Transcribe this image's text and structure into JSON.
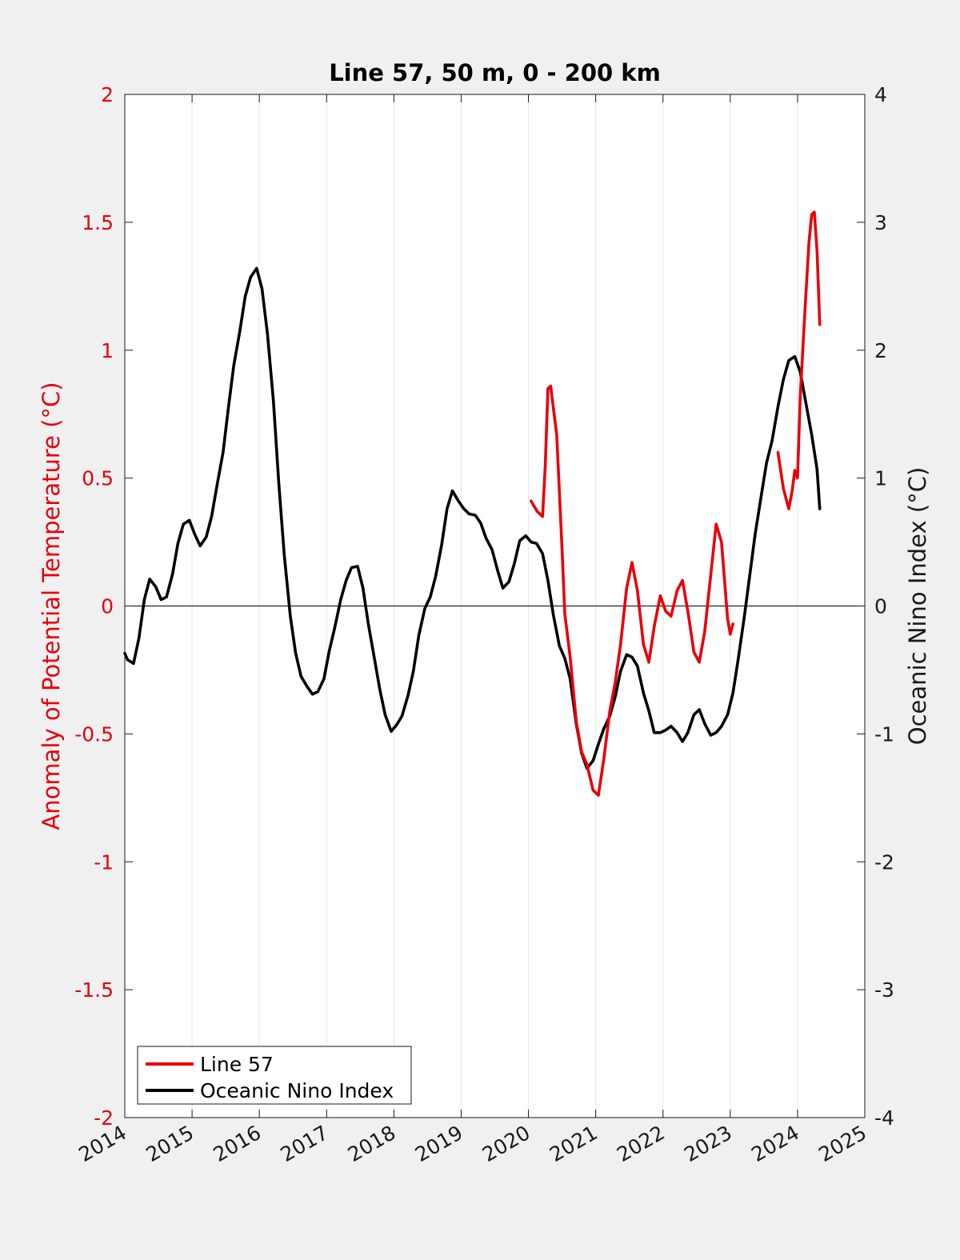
{
  "chart_data": {
    "type": "line",
    "title": "Line 57, 50 m, 0 - 200 km",
    "xlabel": "",
    "ylabel_left": "Anomaly of Potential Temperature (°C)",
    "ylabel_right": "Oceanic Nino Index (°C)",
    "xlim": [
      2014,
      2025
    ],
    "ylim_left": [
      -2,
      2
    ],
    "ylim_right": [
      -4,
      4
    ],
    "xticks": [
      "2014",
      "2015",
      "2016",
      "2017",
      "2018",
      "2019",
      "2020",
      "2021",
      "2022",
      "2023",
      "2024",
      "2025"
    ],
    "yticks_left": [
      "-2",
      "-1.5",
      "-1",
      "-0.5",
      "0",
      "0.5",
      "1",
      "1.5",
      "2"
    ],
    "yticks_right": [
      "-4",
      "-3",
      "-2",
      "-1",
      "0",
      "1",
      "2",
      "3",
      "4"
    ],
    "grid": "vertical",
    "legend_position": "bottom-left",
    "colors": {
      "line57": "#e8000b",
      "oni": "#000000"
    },
    "series": [
      {
        "name": "Line 57",
        "axis": "left",
        "color": "#e8000b",
        "segments": [
          [
            [
              2020.04,
              0.41
            ],
            [
              2020.13,
              0.37
            ],
            [
              2020.21,
              0.35
            ],
            [
              2020.25,
              0.55
            ],
            [
              2020.29,
              0.85
            ],
            [
              2020.33,
              0.86
            ],
            [
              2020.42,
              0.67
            ],
            [
              2020.5,
              0.22
            ],
            [
              2020.54,
              -0.03
            ],
            [
              2020.62,
              -0.2
            ],
            [
              2020.71,
              -0.45
            ],
            [
              2020.79,
              -0.57
            ],
            [
              2020.87,
              -0.62
            ],
            [
              2020.96,
              -0.72
            ],
            [
              2021.04,
              -0.74
            ],
            [
              2021.12,
              -0.6
            ],
            [
              2021.21,
              -0.41
            ],
            [
              2021.29,
              -0.3
            ],
            [
              2021.37,
              -0.15
            ],
            [
              2021.46,
              0.07
            ],
            [
              2021.54,
              0.17
            ],
            [
              2021.62,
              0.06
            ],
            [
              2021.71,
              -0.15
            ],
            [
              2021.79,
              -0.22
            ],
            [
              2021.87,
              -0.08
            ],
            [
              2021.96,
              0.04
            ],
            [
              2022.04,
              -0.02
            ],
            [
              2022.12,
              -0.04
            ],
            [
              2022.21,
              0.06
            ],
            [
              2022.29,
              0.1
            ],
            [
              2022.37,
              -0.02
            ],
            [
              2022.46,
              -0.18
            ],
            [
              2022.54,
              -0.22
            ],
            [
              2022.62,
              -0.1
            ],
            [
              2022.71,
              0.12
            ],
            [
              2022.79,
              0.32
            ],
            [
              2022.87,
              0.25
            ],
            [
              2022.96,
              -0.05
            ],
            [
              2023.0,
              -0.11
            ],
            [
              2023.04,
              -0.07
            ]
          ],
          [
            [
              2023.71,
              0.6
            ],
            [
              2023.79,
              0.46
            ],
            [
              2023.87,
              0.38
            ],
            [
              2023.92,
              0.45
            ],
            [
              2023.96,
              0.53
            ],
            [
              2024.0,
              0.5
            ],
            [
              2024.04,
              0.82
            ],
            [
              2024.12,
              1.2
            ],
            [
              2024.17,
              1.42
            ],
            [
              2024.21,
              1.53
            ],
            [
              2024.25,
              1.54
            ],
            [
              2024.29,
              1.39
            ],
            [
              2024.33,
              1.1
            ]
          ]
        ]
      },
      {
        "name": "Oceanic Nino Index",
        "axis": "right",
        "color": "#000000",
        "segments": [
          [
            [
              2014.0,
              -0.37
            ],
            [
              2014.04,
              -0.42
            ],
            [
              2014.13,
              -0.45
            ],
            [
              2014.21,
              -0.25
            ],
            [
              2014.29,
              0.05
            ],
            [
              2014.37,
              0.21
            ],
            [
              2014.46,
              0.15
            ],
            [
              2014.54,
              0.05
            ],
            [
              2014.62,
              0.07
            ],
            [
              2014.71,
              0.25
            ],
            [
              2014.79,
              0.49
            ],
            [
              2014.87,
              0.64
            ],
            [
              2014.96,
              0.67
            ],
            [
              2015.04,
              0.56
            ],
            [
              2015.12,
              0.47
            ],
            [
              2015.21,
              0.54
            ],
            [
              2015.29,
              0.7
            ],
            [
              2015.37,
              0.94
            ],
            [
              2015.46,
              1.2
            ],
            [
              2015.54,
              1.55
            ],
            [
              2015.62,
              1.88
            ],
            [
              2015.71,
              2.15
            ],
            [
              2015.79,
              2.42
            ],
            [
              2015.87,
              2.57
            ],
            [
              2015.96,
              2.64
            ],
            [
              2016.04,
              2.48
            ],
            [
              2016.12,
              2.13
            ],
            [
              2016.21,
              1.6
            ],
            [
              2016.29,
              0.95
            ],
            [
              2016.37,
              0.4
            ],
            [
              2016.46,
              -0.08
            ],
            [
              2016.54,
              -0.37
            ],
            [
              2016.62,
              -0.55
            ],
            [
              2016.71,
              -0.63
            ],
            [
              2016.79,
              -0.69
            ],
            [
              2016.87,
              -0.67
            ],
            [
              2016.96,
              -0.57
            ],
            [
              2017.04,
              -0.35
            ],
            [
              2017.12,
              -0.17
            ],
            [
              2017.21,
              0.05
            ],
            [
              2017.29,
              0.2
            ],
            [
              2017.37,
              0.3
            ],
            [
              2017.46,
              0.31
            ],
            [
              2017.54,
              0.14
            ],
            [
              2017.62,
              -0.14
            ],
            [
              2017.71,
              -0.41
            ],
            [
              2017.79,
              -0.65
            ],
            [
              2017.87,
              -0.85
            ],
            [
              2017.96,
              -0.98
            ],
            [
              2018.04,
              -0.93
            ],
            [
              2018.12,
              -0.86
            ],
            [
              2018.21,
              -0.7
            ],
            [
              2018.29,
              -0.51
            ],
            [
              2018.37,
              -0.23
            ],
            [
              2018.46,
              -0.02
            ],
            [
              2018.54,
              0.07
            ],
            [
              2018.62,
              0.23
            ],
            [
              2018.71,
              0.48
            ],
            [
              2018.79,
              0.76
            ],
            [
              2018.87,
              0.9
            ],
            [
              2018.96,
              0.82
            ],
            [
              2019.04,
              0.76
            ],
            [
              2019.12,
              0.72
            ],
            [
              2019.21,
              0.71
            ],
            [
              2019.29,
              0.65
            ],
            [
              2019.37,
              0.53
            ],
            [
              2019.46,
              0.44
            ],
            [
              2019.54,
              0.28
            ],
            [
              2019.62,
              0.14
            ],
            [
              2019.71,
              0.19
            ],
            [
              2019.79,
              0.33
            ],
            [
              2019.87,
              0.51
            ],
            [
              2019.96,
              0.55
            ],
            [
              2020.04,
              0.5
            ],
            [
              2020.12,
              0.49
            ],
            [
              2020.21,
              0.41
            ],
            [
              2020.29,
              0.2
            ],
            [
              2020.37,
              -0.07
            ],
            [
              2020.46,
              -0.31
            ],
            [
              2020.54,
              -0.41
            ],
            [
              2020.62,
              -0.57
            ],
            [
              2020.71,
              -0.92
            ],
            [
              2020.79,
              -1.15
            ],
            [
              2020.87,
              -1.27
            ],
            [
              2020.96,
              -1.21
            ],
            [
              2021.04,
              -1.08
            ],
            [
              2021.12,
              -0.96
            ],
            [
              2021.21,
              -0.86
            ],
            [
              2021.29,
              -0.71
            ],
            [
              2021.37,
              -0.51
            ],
            [
              2021.46,
              -0.38
            ],
            [
              2021.54,
              -0.4
            ],
            [
              2021.62,
              -0.47
            ],
            [
              2021.71,
              -0.68
            ],
            [
              2021.79,
              -0.82
            ],
            [
              2021.87,
              -0.99
            ],
            [
              2021.96,
              -0.99
            ],
            [
              2022.04,
              -0.97
            ],
            [
              2022.12,
              -0.94
            ],
            [
              2022.21,
              -0.99
            ],
            [
              2022.29,
              -1.06
            ],
            [
              2022.37,
              -0.99
            ],
            [
              2022.46,
              -0.85
            ],
            [
              2022.54,
              -0.81
            ],
            [
              2022.62,
              -0.92
            ],
            [
              2022.71,
              -1.01
            ],
            [
              2022.79,
              -0.99
            ],
            [
              2022.87,
              -0.94
            ],
            [
              2022.96,
              -0.85
            ],
            [
              2023.04,
              -0.68
            ],
            [
              2023.12,
              -0.41
            ],
            [
              2023.21,
              -0.08
            ],
            [
              2023.29,
              0.24
            ],
            [
              2023.37,
              0.56
            ],
            [
              2023.46,
              0.86
            ],
            [
              2023.54,
              1.12
            ],
            [
              2023.62,
              1.29
            ],
            [
              2023.71,
              1.56
            ],
            [
              2023.79,
              1.77
            ],
            [
              2023.87,
              1.92
            ],
            [
              2023.96,
              1.95
            ],
            [
              2024.04,
              1.83
            ],
            [
              2024.12,
              1.6
            ],
            [
              2024.21,
              1.34
            ],
            [
              2024.29,
              1.07
            ],
            [
              2024.33,
              0.76
            ]
          ]
        ]
      }
    ]
  }
}
